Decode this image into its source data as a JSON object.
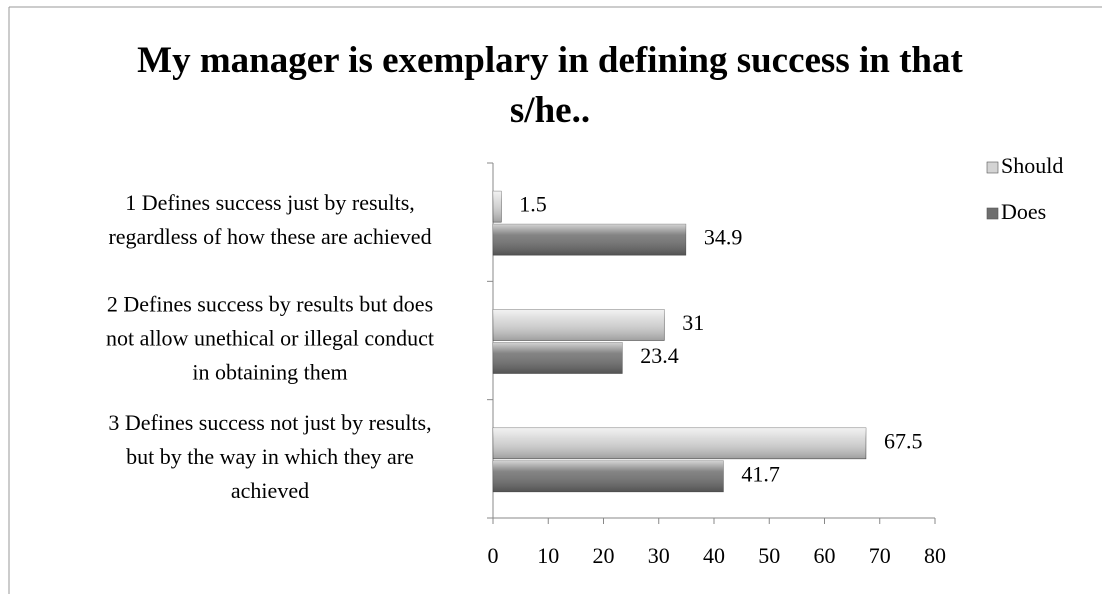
{
  "chart_data": {
    "type": "hbar",
    "title": "My manager is exemplary in defining success in that s/he..",
    "categories": [
      [
        "1 Defines success just by results,",
        "regardless of how these are achieved"
      ],
      [
        "2 Defines success by results but does",
        "not allow unethical or illegal conduct",
        "in obtaining them"
      ],
      [
        "3 Defines success not just by results,",
        "but by the way in which they are",
        "achieved"
      ]
    ],
    "series": [
      {
        "name": "Should",
        "color": "#d4d4d4",
        "values": [
          1.5,
          31,
          67.5
        ]
      },
      {
        "name": "Does",
        "color": "#6e6e6e",
        "values": [
          34.9,
          23.4,
          41.7
        ]
      }
    ],
    "xlim": [
      0,
      80
    ],
    "xticks": [
      0,
      10,
      20,
      30,
      40,
      50,
      60,
      70,
      80
    ],
    "legend": "right"
  }
}
